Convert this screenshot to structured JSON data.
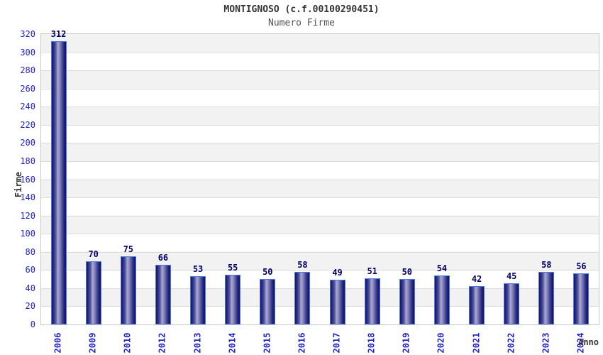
{
  "title": "MONTIGNOSO (c.f.00100290451)",
  "subtitle": "Numero Firme",
  "y_axis_label": "Firme",
  "x_axis_label": "Anno",
  "colors": {
    "tick_label_blue": "#2222cc",
    "value_label_navy": "#000066",
    "bar_edge_navy": "#15156a",
    "bar_center_light": "#a9a9d4",
    "bar_border_blue": "#4a7ae0",
    "band_gray": "#f2f2f2",
    "band_white": "#ffffff",
    "gridline_gray": "#dcdcdc",
    "plot_border_gray": "#c8c8c8",
    "title_color": "#333333",
    "subtitle_color": "#555555"
  },
  "chart_data": {
    "type": "bar",
    "title": "MONTIGNOSO (c.f.00100290451)",
    "subtitle": "Numero Firme",
    "xlabel": "Anno",
    "ylabel": "Firme",
    "categories": [
      "2006",
      "2009",
      "2010",
      "2012",
      "2013",
      "2014",
      "2015",
      "2016",
      "2017",
      "2018",
      "2019",
      "2020",
      "2021",
      "2022",
      "2023",
      "2024"
    ],
    "values": [
      312,
      70,
      75,
      66,
      53,
      55,
      50,
      58,
      49,
      51,
      50,
      54,
      42,
      45,
      58,
      56
    ],
    "ylim": [
      0,
      320
    ],
    "ytick_step": 20,
    "grid": "horizontal-bands-alternating",
    "legend": "none",
    "bar_value_labels": true
  }
}
